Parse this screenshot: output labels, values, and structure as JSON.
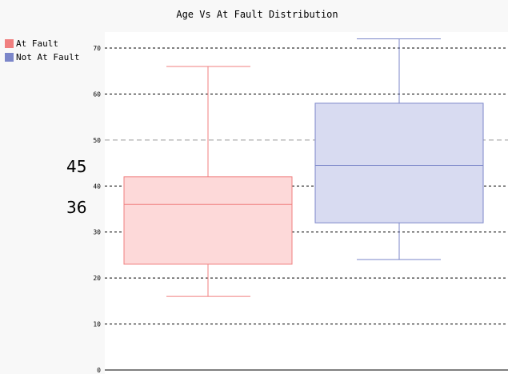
{
  "title": "Age Vs At Fault Distribution",
  "stats": [
    {
      "value": "45"
    },
    {
      "value": "36"
    }
  ],
  "chart_data": {
    "type": "box",
    "title": "Age Vs At Fault Distribution",
    "xlabel": "",
    "ylabel": "",
    "ylim": [
      0,
      73
    ],
    "yticks": [
      0,
      10,
      20,
      30,
      40,
      50,
      60,
      70
    ],
    "grid": true,
    "legend_position": "top-left",
    "series": [
      {
        "name": "At Fault",
        "color": "#f07f7f",
        "fill": "#fdd9d9",
        "min": 16,
        "q1": 23,
        "median": 36,
        "q3": 42,
        "max": 66
      },
      {
        "name": "Not At Fault",
        "color": "#7b86c9",
        "fill": "#d8dbf1",
        "min": 24,
        "q1": 32,
        "median": 44.5,
        "q3": 58,
        "max": 72
      }
    ]
  }
}
